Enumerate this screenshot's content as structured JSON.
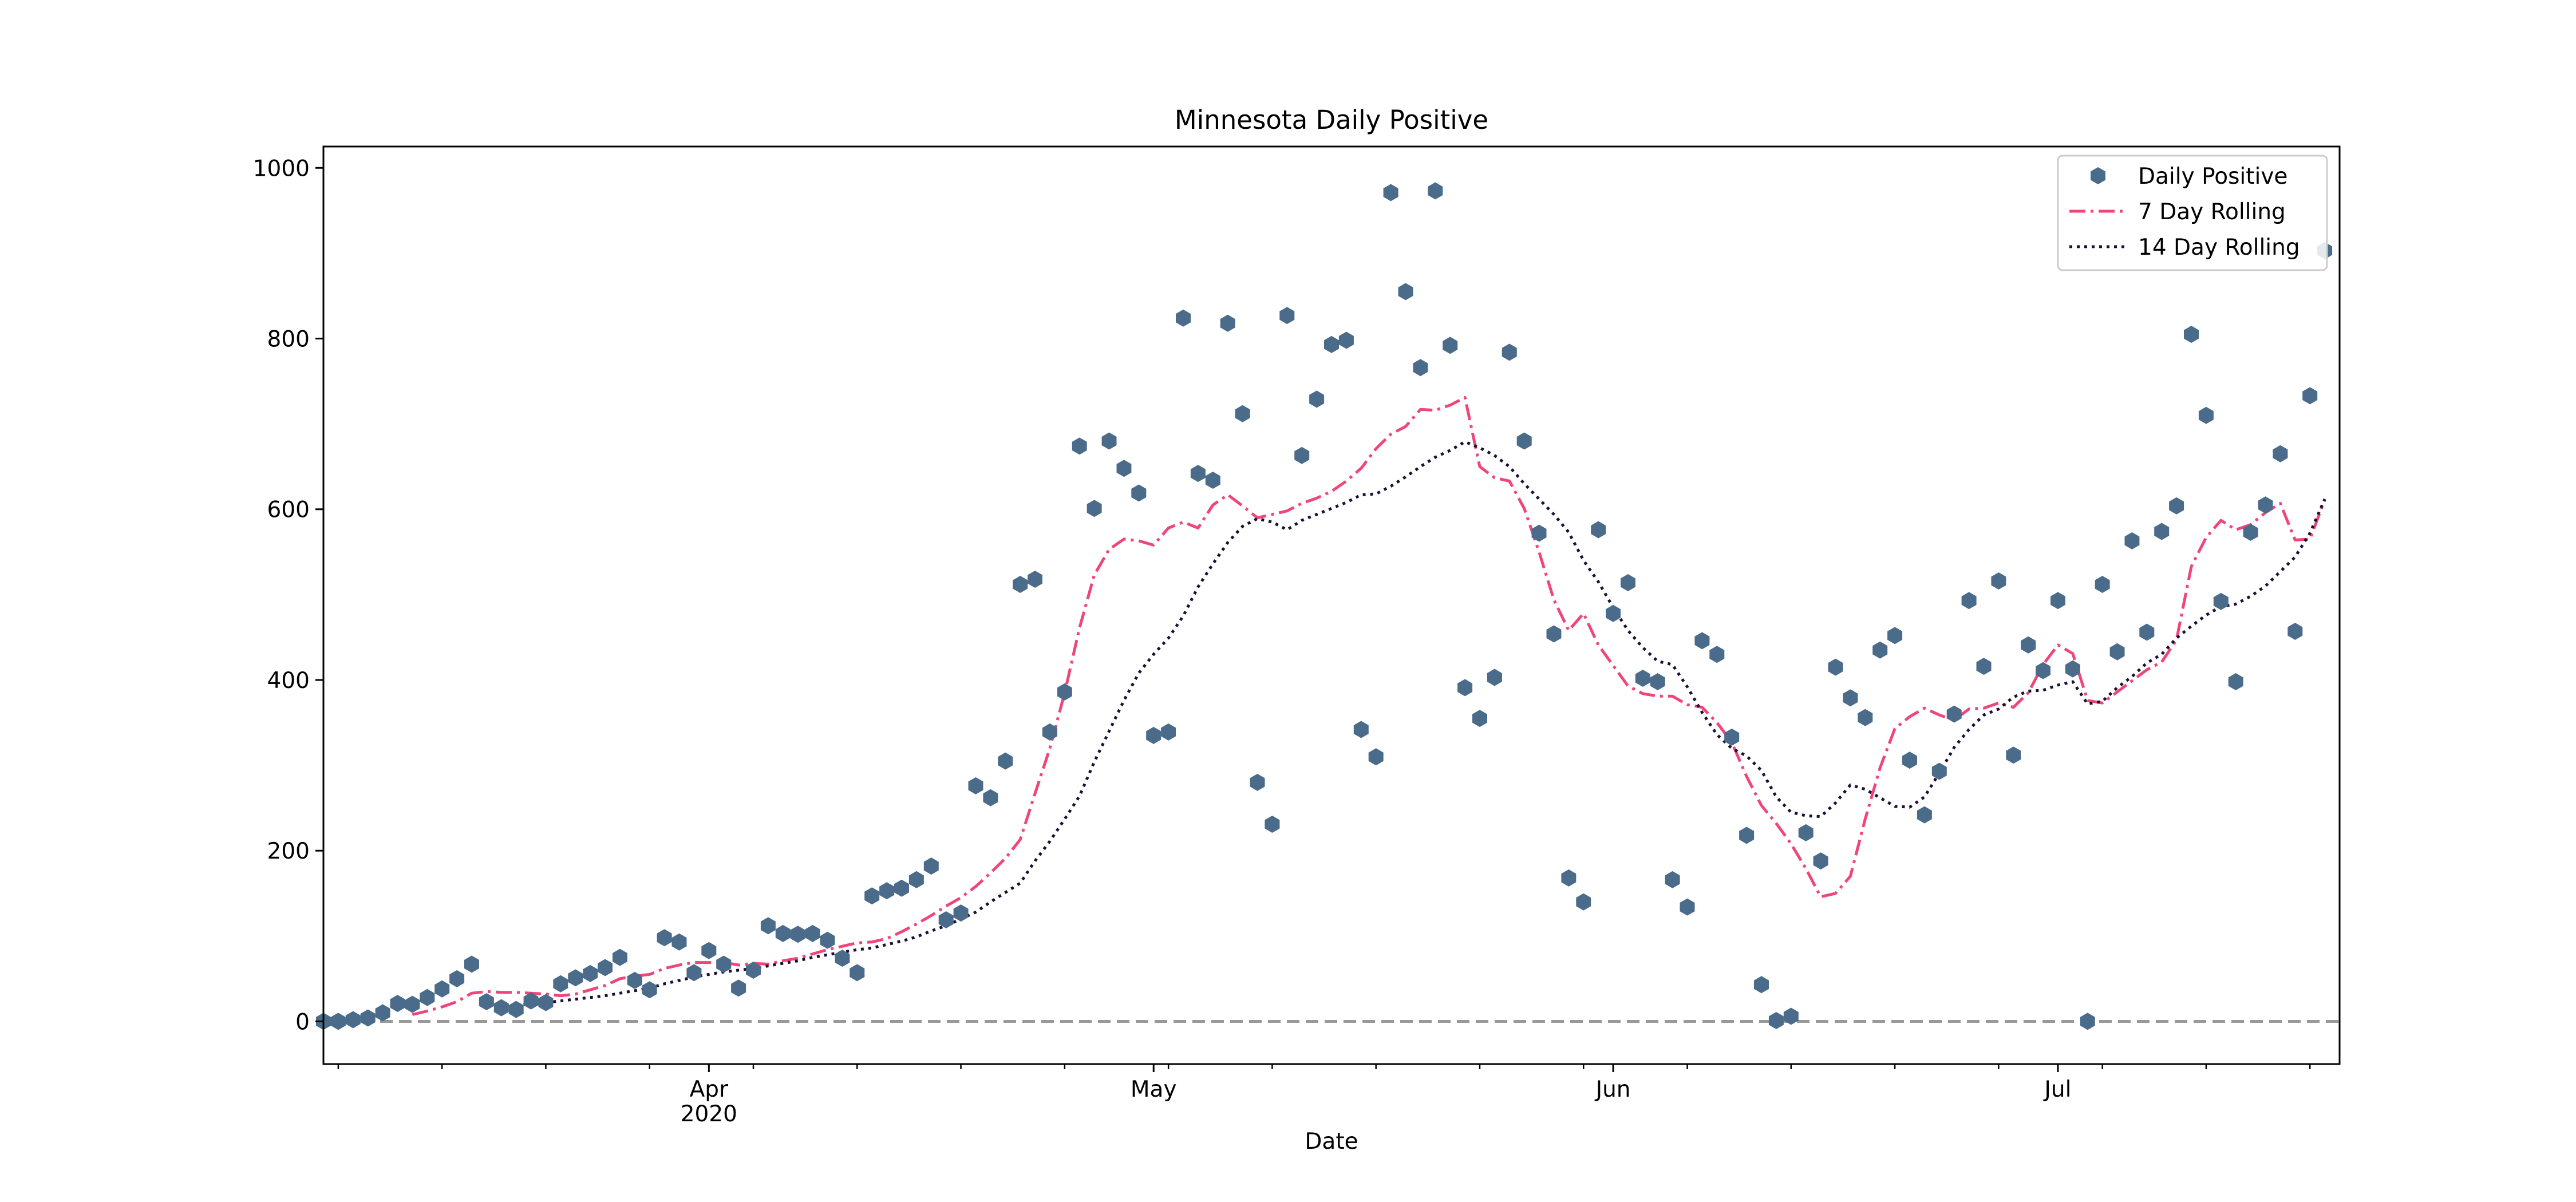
{
  "chart_data": {
    "type": "line",
    "title": "Minnesota Daily Positive",
    "xlabel": "Date",
    "ylabel": "",
    "x_range": [
      "2020-03-06",
      "2020-07-20"
    ],
    "ylim": [
      -50,
      1025
    ],
    "y_ticks": [
      0,
      200,
      400,
      600,
      800,
      1000
    ],
    "x_ticks": [
      {
        "date": "2020-04-01",
        "label": "Apr",
        "sublabel": "2020"
      },
      {
        "date": "2020-05-01",
        "label": "May",
        "sublabel": ""
      },
      {
        "date": "2020-06-01",
        "label": "Jun",
        "sublabel": ""
      },
      {
        "date": "2020-07-01",
        "label": "Jul",
        "sublabel": ""
      }
    ],
    "grid": false,
    "legend_position": "top-right",
    "zero_line": {
      "y": 0,
      "style": "dashed",
      "color": "#999999"
    },
    "start_date": "2020-03-06",
    "series": [
      {
        "name": "Daily Positive",
        "kind": "scatter",
        "marker": "hexagon",
        "color": "#4a6b8a",
        "values": [
          0,
          0,
          2,
          4,
          10,
          21,
          20,
          28,
          38,
          50,
          67,
          23,
          16,
          14,
          24,
          22,
          44,
          51,
          56,
          63,
          75,
          48,
          37,
          98,
          93,
          57,
          83,
          67,
          39,
          60,
          112,
          103,
          102,
          103,
          95,
          74,
          57,
          147,
          153,
          156,
          166,
          182,
          119,
          127,
          276,
          262,
          305,
          512,
          518,
          339,
          386,
          674,
          601,
          680,
          648,
          619,
          335,
          339,
          824,
          642,
          634,
          818,
          712,
          280,
          231,
          827,
          663,
          729,
          793,
          798,
          342,
          310,
          971,
          855,
          766,
          973,
          792,
          391,
          355,
          403,
          784,
          680,
          572,
          454,
          168,
          140,
          576,
          478,
          514,
          402,
          398,
          166,
          134,
          446,
          430,
          333,
          218,
          43,
          1,
          6,
          221,
          188,
          415,
          379,
          356,
          435,
          452,
          306,
          242,
          293,
          360,
          493,
          416,
          516,
          312,
          441,
          411,
          493,
          413,
          0,
          512,
          433,
          563,
          456,
          574,
          604,
          805,
          710,
          492,
          398,
          573,
          605,
          665,
          457,
          733,
          903
        ]
      },
      {
        "name": "7 Day Rolling",
        "kind": "line",
        "dash": "dashdot",
        "color": "#f0457a",
        "values": [
          null,
          null,
          null,
          null,
          null,
          null,
          8,
          12,
          17,
          23,
          33,
          35,
          34,
          34,
          33,
          32,
          30,
          32,
          37,
          42,
          50,
          53,
          55,
          62,
          66,
          69,
          69,
          69,
          66,
          68,
          67,
          71,
          74,
          79,
          84,
          88,
          92,
          93,
          97,
          105,
          114,
          124,
          135,
          145,
          158,
          174,
          191,
          213,
          267,
          320,
          385,
          461,
          523,
          553,
          565,
          563,
          558,
          578,
          585,
          578,
          605,
          617,
          604,
          590,
          594,
          598,
          607,
          613,
          621,
          633,
          648,
          671,
          688,
          697,
          717,
          716,
          722,
          731,
          650,
          637,
          633,
          601,
          550,
          494,
          458,
          478,
          441,
          417,
          393,
          384,
          381,
          381,
          371,
          368,
          350,
          327,
          287,
          253,
          232,
          208,
          179,
          146,
          150,
          170,
          237,
          297,
          343,
          357,
          367,
          359,
          353,
          366,
          367,
          373,
          368,
          385,
          418,
          441,
          431,
          376,
          373,
          386,
          399,
          412,
          421,
          447,
          533,
          567,
          587,
          576,
          582,
          596,
          607,
          564,
          565,
          611
        ]
      },
      {
        "name": "14 Day Rolling",
        "kind": "line",
        "dash": "dotted",
        "color": "#1a0f33",
        "values": [
          null,
          null,
          null,
          null,
          null,
          null,
          null,
          null,
          null,
          null,
          null,
          null,
          null,
          18,
          21,
          22,
          24,
          26,
          28,
          30,
          33,
          36,
          39,
          44,
          48,
          52,
          55,
          58,
          60,
          62,
          65,
          68,
          71,
          75,
          78,
          81,
          84,
          86,
          90,
          94,
          99,
          106,
          112,
          120,
          128,
          140,
          151,
          162,
          188,
          211,
          237,
          264,
          304,
          340,
          376,
          408,
          430,
          449,
          475,
          509,
          536,
          561,
          580,
          589,
          585,
          576,
          587,
          594,
          601,
          608,
          617,
          618,
          627,
          638,
          650,
          661,
          669,
          679,
          672,
          663,
          650,
          630,
          612,
          594,
          573,
          540,
          515,
          485,
          458,
          438,
          422,
          418,
          392,
          362,
          336,
          320,
          311,
          294,
          263,
          245,
          241,
          240,
          256,
          277,
          272,
          262,
          252,
          251,
          263,
          291,
          321,
          342,
          359,
          366,
          380,
          387,
          388,
          394,
          398,
          372,
          375,
          391,
          404,
          420,
          430,
          449,
          463,
          476,
          486,
          489,
          498,
          510,
          527,
          544,
          572,
          612
        ]
      }
    ]
  }
}
